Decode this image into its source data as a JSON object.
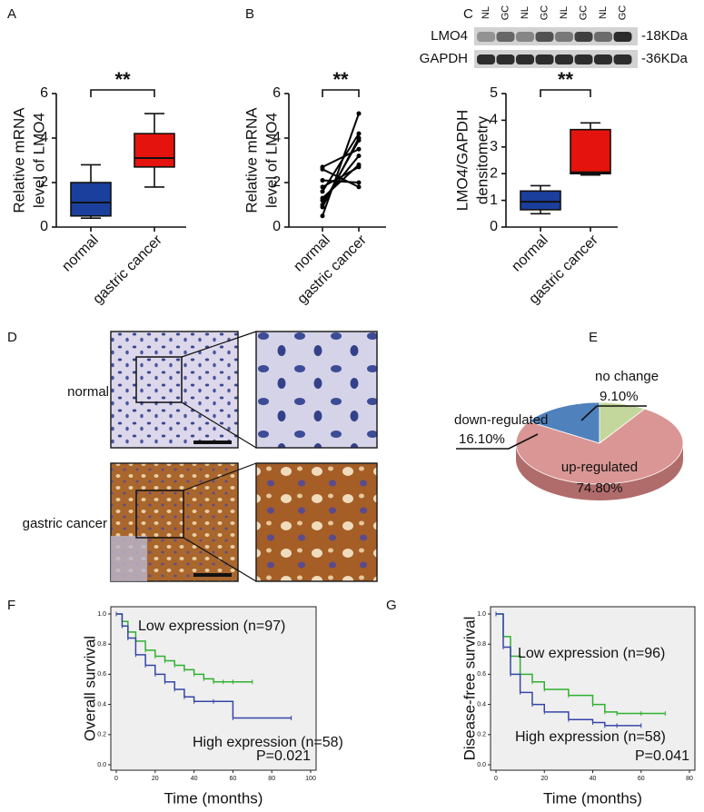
{
  "panel_labels": [
    "A",
    "B",
    "C",
    "D",
    "E",
    "F",
    "G"
  ],
  "blot": {
    "lanes": [
      "NL",
      "GC",
      "NL",
      "GC",
      "NL",
      "GC",
      "NL",
      "GC"
    ],
    "rows": [
      {
        "name": "LMO4",
        "size": "-18KDa"
      },
      {
        "name": "GAPDH",
        "size": "-36KDa"
      }
    ]
  },
  "ihc": {
    "rows": [
      "normal",
      "gastric cancer"
    ]
  },
  "chart_data": [
    {
      "type": "box",
      "ylabel": [
        "Relative mRNA",
        "level of LMO4"
      ],
      "categories": [
        "normal",
        "gastric cancer"
      ],
      "boxes": [
        {
          "min": 0.4,
          "q1": 0.5,
          "median": 1.1,
          "q3": 2.0,
          "max": 2.8
        },
        {
          "min": 1.8,
          "q1": 2.7,
          "median": 3.1,
          "q3": 4.2,
          "max": 5.1
        }
      ],
      "colors": [
        "#1b3f9c",
        "#e5130d"
      ],
      "ylim": [
        0,
        6
      ],
      "yticks": [
        0,
        2,
        4,
        6
      ],
      "annotation": "**"
    },
    {
      "type": "paired",
      "ylabel": [
        "Relative mRNA",
        "level of LMO4"
      ],
      "categories": [
        "normal",
        "gastric cancer"
      ],
      "series": [
        {
          "color": "#000000",
          "values": [
            0.5,
            5.1
          ]
        },
        {
          "color": "#000000",
          "values": [
            0.9,
            4.0
          ]
        },
        {
          "color": "#000000",
          "values": [
            1.0,
            3.9
          ]
        },
        {
          "color": "#000000",
          "values": [
            1.2,
            3.2
          ]
        },
        {
          "color": "#000000",
          "values": [
            1.3,
            2.8
          ]
        },
        {
          "color": "#000000",
          "values": [
            1.8,
            2.7
          ]
        },
        {
          "color": "#000000",
          "values": [
            2.1,
            2.0
          ]
        },
        {
          "color": "#000000",
          "values": [
            2.6,
            1.8
          ]
        },
        {
          "color": "#000000",
          "values": [
            2.7,
            3.5
          ]
        },
        {
          "color": "#000000",
          "values": [
            1.6,
            4.2
          ]
        }
      ],
      "ylim": [
        0,
        6
      ],
      "yticks": [
        0,
        2,
        4,
        6
      ],
      "annotation": "**"
    },
    {
      "type": "box",
      "ylabel": [
        "LMO4/GAPDH",
        "densitometry"
      ],
      "categories": [
        "normal",
        "gastric cancer"
      ],
      "boxes": [
        {
          "min": 0.5,
          "q1": 0.65,
          "median": 0.95,
          "q3": 1.35,
          "max": 1.55
        },
        {
          "min": 1.95,
          "q1": 2.0,
          "median": 2.05,
          "q3": 3.65,
          "max": 3.9
        }
      ],
      "colors": [
        "#1b3f9c",
        "#e5130d"
      ],
      "ylim": [
        0,
        5
      ],
      "yticks": [
        0,
        1,
        2,
        3,
        4,
        5
      ],
      "annotation": "**"
    },
    {
      "type": "pie",
      "categories": [
        "down-regulated",
        "no change",
        "up-regulated"
      ],
      "values": [
        16.1,
        9.1,
        74.8
      ],
      "value_labels": [
        "16.10%",
        "9.10%",
        "74.80%"
      ],
      "colors": [
        "#4f81bd",
        "#c3d69b",
        "#d99694"
      ]
    },
    {
      "type": "survival",
      "xlabel": "Time (months)",
      "ylabel": "Overall survival",
      "annotation": "P=0.021",
      "xlim": [
        0,
        100
      ],
      "xticks": [
        0,
        20,
        40,
        60,
        80,
        100
      ],
      "ylim": [
        0,
        1
      ],
      "yticks": [
        {
          "value": 0,
          "label": "0.0"
        },
        0.2,
        0.4,
        0.6,
        0.8,
        {
          "value": 1,
          "label": "1.0"
        }
      ],
      "series": [
        {
          "name": "Low expression (n=97)",
          "color": "#2fb02f",
          "x": [
            0,
            3,
            6,
            10,
            15,
            20,
            25,
            30,
            35,
            40,
            45,
            50,
            55,
            60,
            70
          ],
          "values": [
            1,
            0.95,
            0.88,
            0.82,
            0.76,
            0.72,
            0.69,
            0.66,
            0.63,
            0.6,
            0.57,
            0.55,
            0.55,
            0.55,
            0.55
          ]
        },
        {
          "name": "High expression (n=58)",
          "color": "#3545a8",
          "x": [
            0,
            3,
            6,
            10,
            15,
            20,
            25,
            30,
            35,
            40,
            50,
            60,
            90
          ],
          "values": [
            1,
            0.92,
            0.84,
            0.73,
            0.66,
            0.6,
            0.55,
            0.5,
            0.45,
            0.42,
            0.42,
            0.31,
            0.31
          ]
        }
      ]
    },
    {
      "type": "survival",
      "xlabel": "Time (months)",
      "ylabel": "Disease-free survival",
      "annotation": "P=0.041",
      "xlim": [
        0,
        80
      ],
      "xticks": [
        0,
        20,
        40,
        60,
        80
      ],
      "ylim": [
        0,
        1
      ],
      "yticks": [
        {
          "value": 0,
          "label": "0.0"
        },
        0.2,
        0.4,
        0.6,
        0.8,
        {
          "value": 1,
          "label": "1.0"
        }
      ],
      "series": [
        {
          "name": "Low expression (n=96)",
          "color": "#2fb02f",
          "x": [
            0,
            3,
            6,
            10,
            15,
            20,
            30,
            40,
            45,
            50,
            60,
            70
          ],
          "values": [
            1,
            0.85,
            0.72,
            0.6,
            0.55,
            0.5,
            0.46,
            0.4,
            0.35,
            0.34,
            0.34,
            0.34
          ]
        },
        {
          "name": "High expression (n=58)",
          "color": "#3545a8",
          "x": [
            0,
            3,
            6,
            10,
            15,
            20,
            30,
            40,
            45,
            50,
            60
          ],
          "values": [
            1,
            0.78,
            0.6,
            0.48,
            0.4,
            0.35,
            0.3,
            0.28,
            0.26,
            0.26,
            0.26
          ]
        }
      ]
    }
  ]
}
